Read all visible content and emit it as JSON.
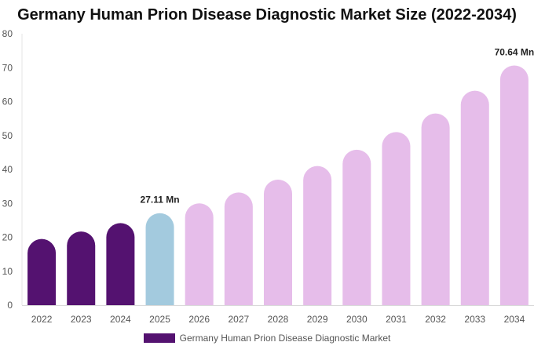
{
  "chart_data": {
    "type": "bar",
    "title": "Germany Human Prion Disease Diagnostic Market Size (2022-2034)",
    "xlabel": "",
    "ylabel": "",
    "categories": [
      "2022",
      "2023",
      "2024",
      "2025",
      "2026",
      "2027",
      "2028",
      "2029",
      "2030",
      "2031",
      "2032",
      "2033",
      "2034"
    ],
    "series": [
      {
        "name": "Germany Human Prion Disease Diagnostic Market",
        "values": [
          19.5,
          21.7,
          24.2,
          27.11,
          30.0,
          33.2,
          37.0,
          41.0,
          45.8,
          51.0,
          56.5,
          63.2,
          70.64
        ]
      }
    ],
    "data_labels": [
      {
        "category": "2025",
        "text": "27.11 Mn"
      },
      {
        "category": "2034",
        "text": "70.64 Mn"
      }
    ],
    "ylim": [
      0,
      80
    ],
    "yticks": [
      0,
      10,
      20,
      30,
      40,
      50,
      60,
      70,
      80
    ],
    "grid": false,
    "legend_position": "bottom-center",
    "colors": {
      "historical": "#541270",
      "current": "#A3CADE",
      "forecast": "#E6BDEA"
    },
    "bar_color_groups": [
      "historical",
      "historical",
      "historical",
      "current",
      "forecast",
      "forecast",
      "forecast",
      "forecast",
      "forecast",
      "forecast",
      "forecast",
      "forecast",
      "forecast"
    ],
    "legend_color": "#541270"
  }
}
